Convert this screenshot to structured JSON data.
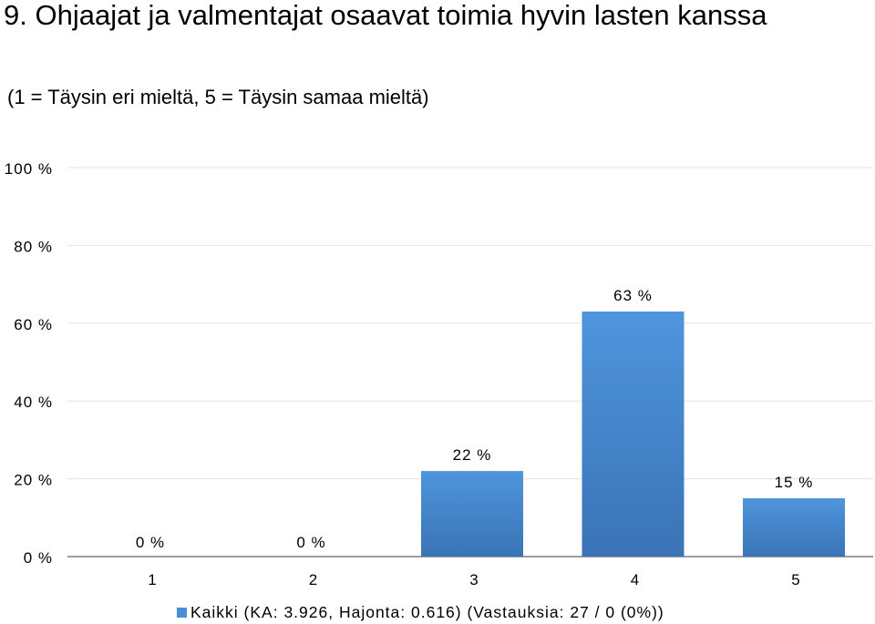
{
  "chart_data": {
    "type": "bar",
    "title": "9. Ohjaajat ja valmentajat osaavat toimia hyvin lasten kanssa",
    "subtitle": "(1 = Täysin eri mieltä, 5 = Täysin samaa mieltä)",
    "categories": [
      "1",
      "2",
      "3",
      "4",
      "5"
    ],
    "values": [
      0,
      0,
      22,
      63,
      15
    ],
    "value_labels": [
      "0 %",
      "0 %",
      "22 %",
      "63 %",
      "15 %"
    ],
    "ylim": [
      0,
      100
    ],
    "yticks": [
      0,
      20,
      40,
      60,
      80,
      100
    ],
    "ytick_labels": [
      "0 %",
      "20 %",
      "40 %",
      "60 %",
      "80 %",
      "100 %"
    ],
    "xlabel": "",
    "ylabel": "",
    "grid": true,
    "legend_position": "bottom",
    "series": [
      {
        "name": "Kaikki (KA: 3.926, Hajonta: 0.616) (Vastauksia: 27 / 0 (0%))",
        "values": [
          0,
          0,
          22,
          63,
          15
        ],
        "color": "#4a8fd6"
      }
    ]
  },
  "colors": {
    "bar_top": "#4f95dd",
    "bar_bottom": "#3a74b5",
    "grid": "#e3e3e3",
    "axis": "#7f7f7f",
    "text": "#000000"
  }
}
